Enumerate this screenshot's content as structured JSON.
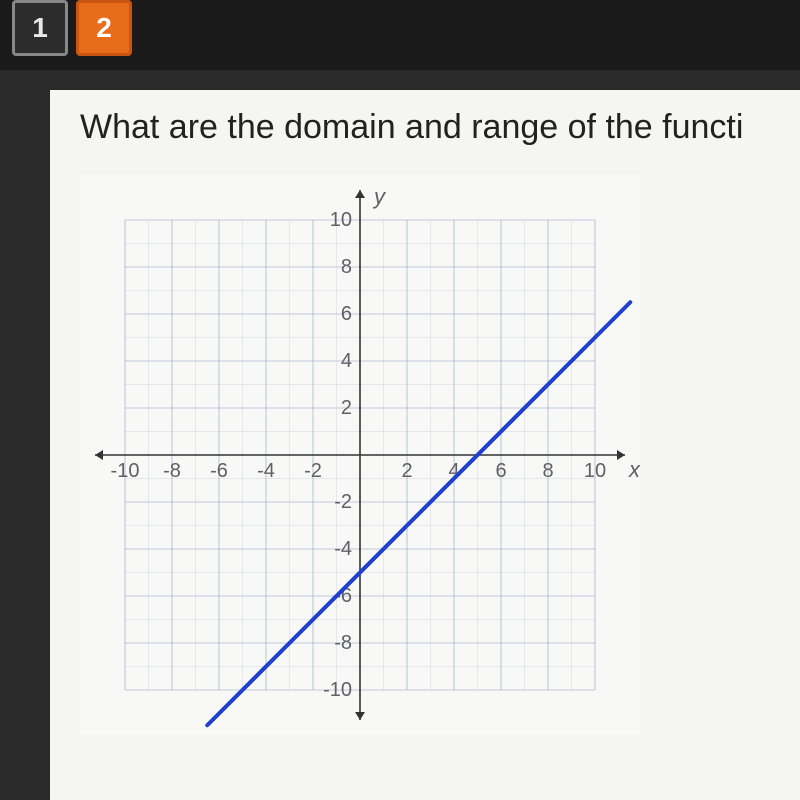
{
  "tabs": [
    {
      "label": "1",
      "active": false
    },
    {
      "label": "2",
      "active": true
    }
  ],
  "question": "What are the domain and range of the functi",
  "chart": {
    "type": "line",
    "xlim": [
      -11,
      11
    ],
    "ylim": [
      -11,
      11
    ],
    "xtick_step": 2,
    "ytick_step": 2,
    "minor_step": 1,
    "x_axis_label": "x",
    "y_axis_label": "y",
    "xtick_labels": [
      "-10",
      "-8",
      "-6",
      "-4",
      "-2",
      "2",
      "4",
      "6",
      "8",
      "10"
    ],
    "ytick_labels": [
      "10",
      "8",
      "6",
      "4",
      "2",
      "-2",
      "-4",
      "-6",
      "-8",
      "-10"
    ],
    "grid_color": "#9ba9c9",
    "grid_width": 0.6,
    "minor_grid_color": "#c6cede",
    "minor_grid_width": 0.4,
    "axis_color": "#333333",
    "axis_width": 1.6,
    "background_color": "#f8f8f6",
    "line": {
      "color": "#1f3fd1",
      "width": 4,
      "points": [
        {
          "x": -6.5,
          "y": -11.5
        },
        {
          "x": 11.5,
          "y": 6.5
        }
      ]
    },
    "label_color": "#606065",
    "label_fontsize": 20,
    "axis_label_fontsize": 22,
    "axis_label_style": "italic"
  }
}
